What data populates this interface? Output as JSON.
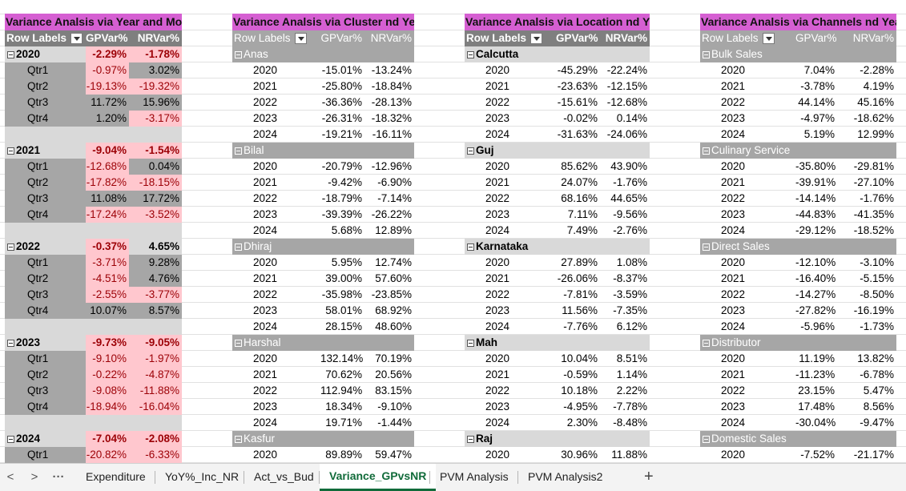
{
  "pivots": [
    {
      "title": "Variance Analsis via Year and Month",
      "headers": [
        "Row Labels",
        "GPVar%",
        "NRVar%"
      ],
      "groups": [
        {
          "label": "2020",
          "gp": "-2.29%",
          "nr": "-1.78%",
          "rows": [
            {
              "label": "Qtr1",
              "gp": "-0.97%",
              "nr": "3.02%"
            },
            {
              "label": "Qtr2",
              "gp": "-19.13%",
              "nr": "-19.32%"
            },
            {
              "label": "Qtr3",
              "gp": "11.72%",
              "nr": "15.96%"
            },
            {
              "label": "Qtr4",
              "gp": "1.20%",
              "nr": "-3.17%"
            }
          ]
        },
        {
          "label": "2021",
          "gp": "-9.04%",
          "nr": "-1.54%",
          "rows": [
            {
              "label": "Qtr1",
              "gp": "-12.68%",
              "nr": "0.04%"
            },
            {
              "label": "Qtr2",
              "gp": "-17.82%",
              "nr": "-18.15%"
            },
            {
              "label": "Qtr3",
              "gp": "11.08%",
              "nr": "17.72%"
            },
            {
              "label": "Qtr4",
              "gp": "-17.24%",
              "nr": "-3.52%"
            }
          ]
        },
        {
          "label": "2022",
          "gp": "-0.37%",
          "nr": "4.65%",
          "rows": [
            {
              "label": "Qtr1",
              "gp": "-3.71%",
              "nr": "9.28%"
            },
            {
              "label": "Qtr2",
              "gp": "-4.51%",
              "nr": "4.76%"
            },
            {
              "label": "Qtr3",
              "gp": "-2.55%",
              "nr": "-3.77%"
            },
            {
              "label": "Qtr4",
              "gp": "10.07%",
              "nr": "8.57%"
            }
          ]
        },
        {
          "label": "2023",
          "gp": "-9.73%",
          "nr": "-9.05%",
          "rows": [
            {
              "label": "Qtr1",
              "gp": "-9.10%",
              "nr": "-1.97%"
            },
            {
              "label": "Qtr2",
              "gp": "-0.22%",
              "nr": "-4.87%"
            },
            {
              "label": "Qtr3",
              "gp": "-9.08%",
              "nr": "-11.88%"
            },
            {
              "label": "Qtr4",
              "gp": "-18.94%",
              "nr": "-16.04%"
            }
          ]
        },
        {
          "label": "2024",
          "gp": "-7.04%",
          "nr": "-2.08%",
          "rows": [
            {
              "label": "Qtr1",
              "gp": "-20.82%",
              "nr": "-6.33%"
            }
          ]
        }
      ]
    },
    {
      "title": "Variance Analsis via Cluster nd Year",
      "headers": [
        "Row Labels",
        "GPVar%",
        "NRVar%"
      ],
      "groups": [
        {
          "label": "Anas",
          "rows": [
            {
              "label": "2020",
              "gp": "-15.01%",
              "nr": "-13.24%"
            },
            {
              "label": "2021",
              "gp": "-25.80%",
              "nr": "-18.84%"
            },
            {
              "label": "2022",
              "gp": "-36.36%",
              "nr": "-28.13%"
            },
            {
              "label": "2023",
              "gp": "-26.31%",
              "nr": "-18.32%"
            },
            {
              "label": "2024",
              "gp": "-19.21%",
              "nr": "-16.11%"
            }
          ]
        },
        {
          "label": "Bilal",
          "rows": [
            {
              "label": "2020",
              "gp": "-20.79%",
              "nr": "-12.96%"
            },
            {
              "label": "2021",
              "gp": "-9.42%",
              "nr": "-6.90%"
            },
            {
              "label": "2022",
              "gp": "-18.79%",
              "nr": "-7.14%"
            },
            {
              "label": "2023",
              "gp": "-39.39%",
              "nr": "-26.22%"
            },
            {
              "label": "2024",
              "gp": "5.68%",
              "nr": "12.89%"
            }
          ]
        },
        {
          "label": "Dhiraj",
          "rows": [
            {
              "label": "2020",
              "gp": "5.95%",
              "nr": "12.74%"
            },
            {
              "label": "2021",
              "gp": "39.00%",
              "nr": "57.60%"
            },
            {
              "label": "2022",
              "gp": "-35.98%",
              "nr": "-23.85%"
            },
            {
              "label": "2023",
              "gp": "58.01%",
              "nr": "68.92%"
            },
            {
              "label": "2024",
              "gp": "28.15%",
              "nr": "48.60%"
            }
          ]
        },
        {
          "label": "Harshal",
          "rows": [
            {
              "label": "2020",
              "gp": "132.14%",
              "nr": "70.19%"
            },
            {
              "label": "2021",
              "gp": "70.62%",
              "nr": "20.56%"
            },
            {
              "label": "2022",
              "gp": "112.94%",
              "nr": "83.15%"
            },
            {
              "label": "2023",
              "gp": "18.34%",
              "nr": "-9.10%"
            },
            {
              "label": "2024",
              "gp": "19.71%",
              "nr": "-1.44%"
            }
          ]
        },
        {
          "label": "Kasfur",
          "rows": [
            {
              "label": "2020",
              "gp": "89.89%",
              "nr": "59.47%"
            }
          ]
        }
      ]
    },
    {
      "title": "Variance Analsis via Location nd Year",
      "headers": [
        "Row Labels",
        "GPVar%",
        "NRVar%"
      ],
      "groups": [
        {
          "label": "Calcutta",
          "rows": [
            {
              "label": "2020",
              "gp": "-45.29%",
              "nr": "-22.24%"
            },
            {
              "label": "2021",
              "gp": "-23.63%",
              "nr": "-12.15%"
            },
            {
              "label": "2022",
              "gp": "-15.61%",
              "nr": "-12.68%"
            },
            {
              "label": "2023",
              "gp": "-0.02%",
              "nr": "0.14%"
            },
            {
              "label": "2024",
              "gp": "-31.63%",
              "nr": "-24.06%"
            }
          ]
        },
        {
          "label": "Guj",
          "rows": [
            {
              "label": "2020",
              "gp": "85.62%",
              "nr": "43.90%"
            },
            {
              "label": "2021",
              "gp": "24.07%",
              "nr": "-1.76%"
            },
            {
              "label": "2022",
              "gp": "68.16%",
              "nr": "44.65%"
            },
            {
              "label": "2023",
              "gp": "7.11%",
              "nr": "-9.56%"
            },
            {
              "label": "2024",
              "gp": "7.49%",
              "nr": "-2.76%"
            }
          ]
        },
        {
          "label": "Karnataka",
          "rows": [
            {
              "label": "2020",
              "gp": "27.89%",
              "nr": "1.08%"
            },
            {
              "label": "2021",
              "gp": "-26.06%",
              "nr": "-8.37%"
            },
            {
              "label": "2022",
              "gp": "-7.81%",
              "nr": "-3.59%"
            },
            {
              "label": "2023",
              "gp": "11.56%",
              "nr": "-7.35%"
            },
            {
              "label": "2024",
              "gp": "-7.76%",
              "nr": "6.12%"
            }
          ]
        },
        {
          "label": "Mah",
          "rows": [
            {
              "label": "2020",
              "gp": "10.04%",
              "nr": "8.51%"
            },
            {
              "label": "2021",
              "gp": "-0.59%",
              "nr": "1.14%"
            },
            {
              "label": "2022",
              "gp": "10.18%",
              "nr": "2.22%"
            },
            {
              "label": "2023",
              "gp": "-4.95%",
              "nr": "-7.78%"
            },
            {
              "label": "2024",
              "gp": "2.30%",
              "nr": "-8.48%"
            }
          ]
        },
        {
          "label": "Raj",
          "rows": [
            {
              "label": "2020",
              "gp": "30.96%",
              "nr": "11.88%"
            }
          ]
        }
      ]
    },
    {
      "title": "Variance Analsis via Channels nd Year",
      "headers": [
        "Row Labels",
        "GPVar%",
        "NRVar%"
      ],
      "groups": [
        {
          "label": "Bulk Sales",
          "rows": [
            {
              "label": "2020",
              "gp": "7.04%",
              "nr": "-2.28%"
            },
            {
              "label": "2021",
              "gp": "-3.78%",
              "nr": "4.19%"
            },
            {
              "label": "2022",
              "gp": "44.14%",
              "nr": "45.16%"
            },
            {
              "label": "2023",
              "gp": "-4.97%",
              "nr": "-18.62%"
            },
            {
              "label": "2024",
              "gp": "5.19%",
              "nr": "12.99%"
            }
          ]
        },
        {
          "label": "Culinary Service",
          "rows": [
            {
              "label": "2020",
              "gp": "-35.80%",
              "nr": "-29.81%"
            },
            {
              "label": "2021",
              "gp": "-39.91%",
              "nr": "-27.10%"
            },
            {
              "label": "2022",
              "gp": "-14.14%",
              "nr": "-1.76%"
            },
            {
              "label": "2023",
              "gp": "-44.83%",
              "nr": "-41.35%"
            },
            {
              "label": "2024",
              "gp": "-29.12%",
              "nr": "-18.52%"
            }
          ]
        },
        {
          "label": "Direct Sales",
          "rows": [
            {
              "label": "2020",
              "gp": "-12.10%",
              "nr": "-3.10%"
            },
            {
              "label": "2021",
              "gp": "-16.40%",
              "nr": "-5.15%"
            },
            {
              "label": "2022",
              "gp": "-14.27%",
              "nr": "-8.50%"
            },
            {
              "label": "2023",
              "gp": "-27.82%",
              "nr": "-16.19%"
            },
            {
              "label": "2024",
              "gp": "-5.96%",
              "nr": "-1.73%"
            }
          ]
        },
        {
          "label": "Distributor",
          "rows": [
            {
              "label": "2020",
              "gp": "11.19%",
              "nr": "13.82%"
            },
            {
              "label": "2021",
              "gp": "-11.23%",
              "nr": "-6.78%"
            },
            {
              "label": "2022",
              "gp": "23.15%",
              "nr": "5.47%"
            },
            {
              "label": "2023",
              "gp": "17.48%",
              "nr": "8.56%"
            },
            {
              "label": "2024",
              "gp": "-30.04%",
              "nr": "-9.47%"
            }
          ]
        },
        {
          "label": "Domestic Sales",
          "rows": [
            {
              "label": "2020",
              "gp": "-7.52%",
              "nr": "-21.17%"
            }
          ]
        }
      ]
    }
  ],
  "tabs": {
    "nav_prev": "<",
    "nav_next": ">",
    "more": "···",
    "sheets": [
      "Expenditure",
      "YoY%_Inc_NR",
      "Act_vs_Bud",
      "Variance_GPvsNR",
      "PVM Analysis",
      "PVM Analysis2"
    ],
    "active_sheet": "Variance_GPvsNR",
    "add": "+"
  },
  "colors": {
    "title_bar": "#d55fd2",
    "header_gray": "#a6a6a6",
    "group_gray": "#d9d9d9",
    "neg_fill": "#ffc7ce",
    "neg_text": "#9c0006",
    "active_tab": "#116b3a"
  }
}
